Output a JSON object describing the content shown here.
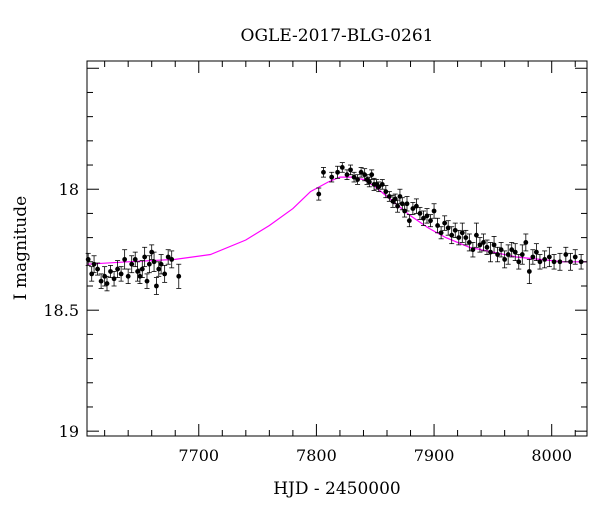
{
  "chart_data": {
    "type": "scatter",
    "title": "OGLE-2017-BLG-0261",
    "xlabel": "HJD - 2450000",
    "ylabel": "I magnitude",
    "xlim": [
      7605,
      8030
    ],
    "ylim": [
      19.02,
      17.47
    ],
    "y_inverted": true,
    "xticks": [
      7700,
      7800,
      7900,
      8000
    ],
    "yticks": [
      18,
      18.5,
      19
    ],
    "ytick_labels": [
      "18",
      "18.5",
      "19"
    ],
    "grid": false,
    "legend": "none",
    "colors": {
      "points": "#000000",
      "model": "#ff00ff"
    },
    "model": {
      "name": "",
      "x": [
        7605,
        7640,
        7680,
        7710,
        7740,
        7760,
        7780,
        7795,
        7810,
        7820,
        7830,
        7840,
        7850,
        7860,
        7870,
        7880,
        7895,
        7910,
        7930,
        7950,
        7970,
        7990,
        8010,
        8030
      ],
      "y": [
        18.31,
        18.3,
        18.29,
        18.27,
        18.21,
        18.15,
        18.08,
        18.01,
        17.97,
        17.95,
        17.95,
        17.96,
        17.99,
        18.03,
        18.07,
        18.11,
        18.16,
        18.2,
        18.24,
        18.26,
        18.28,
        18.29,
        18.3,
        18.3
      ]
    },
    "series": [
      {
        "name": "",
        "x": [
          7606,
          7609,
          7611,
          7614,
          7617,
          7620,
          7622,
          7625,
          7628,
          7631,
          7634,
          7637,
          7640,
          7643,
          7646,
          7648,
          7650,
          7652,
          7654,
          7656,
          7658,
          7660,
          7662,
          7664,
          7666,
          7668,
          7671,
          7674,
          7677,
          7683,
          7802,
          7806,
          7813,
          7818,
          7822,
          7826,
          7829,
          7832,
          7835,
          7838,
          7841,
          7843,
          7845,
          7847,
          7849,
          7851,
          7853,
          7856,
          7859,
          7862,
          7865,
          7867,
          7869,
          7871,
          7873,
          7875,
          7877,
          7879,
          7882,
          7885,
          7888,
          7891,
          7894,
          7897,
          7900,
          7903,
          7906,
          7909,
          7912,
          7915,
          7918,
          7921,
          7924,
          7927,
          7930,
          7933,
          7936,
          7939,
          7942,
          7945,
          7948,
          7951,
          7954,
          7957,
          7960,
          7963,
          7966,
          7969,
          7972,
          7975,
          7978,
          7981,
          7984,
          7987,
          7990,
          7994,
          7998,
          8002,
          8007,
          8012,
          8016,
          8020,
          8025
        ],
        "y": [
          18.29,
          18.35,
          18.31,
          18.33,
          18.38,
          18.36,
          18.39,
          18.34,
          18.37,
          18.33,
          18.35,
          18.29,
          18.36,
          18.31,
          18.29,
          18.34,
          18.36,
          18.33,
          18.28,
          18.38,
          18.31,
          18.26,
          18.3,
          18.4,
          18.33,
          18.31,
          18.35,
          18.28,
          18.29,
          18.36,
          18.02,
          17.93,
          17.95,
          17.93,
          17.91,
          17.94,
          17.92,
          17.95,
          17.96,
          17.93,
          17.94,
          17.96,
          17.97,
          17.94,
          17.98,
          17.98,
          17.99,
          17.98,
          18.01,
          18.03,
          18.05,
          18.04,
          18.07,
          18.03,
          18.06,
          18.09,
          18.06,
          18.13,
          18.08,
          18.07,
          18.1,
          18.12,
          18.11,
          18.13,
          18.09,
          18.15,
          18.18,
          18.14,
          18.16,
          18.19,
          18.17,
          18.2,
          18.18,
          18.2,
          18.22,
          18.25,
          18.19,
          18.23,
          18.22,
          18.24,
          18.26,
          18.23,
          18.27,
          18.25,
          18.29,
          18.27,
          18.25,
          18.26,
          18.3,
          18.27,
          18.22,
          18.34,
          18.28,
          18.26,
          18.3,
          18.29,
          18.28,
          18.3,
          18.3,
          18.27,
          18.3,
          18.28,
          18.3
        ],
        "err": [
          0.025,
          0.03,
          0.035,
          0.025,
          0.03,
          0.04,
          0.03,
          0.025,
          0.03,
          0.035,
          0.03,
          0.04,
          0.03,
          0.035,
          0.03,
          0.04,
          0.03,
          0.035,
          0.04,
          0.03,
          0.035,
          0.03,
          0.04,
          0.035,
          0.03,
          0.04,
          0.035,
          0.03,
          0.035,
          0.05,
          0.025,
          0.02,
          0.02,
          0.025,
          0.02,
          0.02,
          0.02,
          0.02,
          0.02,
          0.02,
          0.025,
          0.02,
          0.02,
          0.02,
          0.025,
          0.02,
          0.02,
          0.02,
          0.025,
          0.02,
          0.025,
          0.02,
          0.025,
          0.03,
          0.025,
          0.025,
          0.03,
          0.025,
          0.025,
          0.03,
          0.025,
          0.03,
          0.03,
          0.025,
          0.03,
          0.03,
          0.025,
          0.03,
          0.03,
          0.035,
          0.03,
          0.03,
          0.04,
          0.03,
          0.035,
          0.03,
          0.05,
          0.03,
          0.035,
          0.03,
          0.04,
          0.035,
          0.03,
          0.03,
          0.035,
          0.04,
          0.03,
          0.035,
          0.03,
          0.04,
          0.035,
          0.05,
          0.03,
          0.035,
          0.03,
          0.035,
          0.04,
          0.03,
          0.035,
          0.03,
          0.035,
          0.03,
          0.03
        ]
      }
    ]
  }
}
